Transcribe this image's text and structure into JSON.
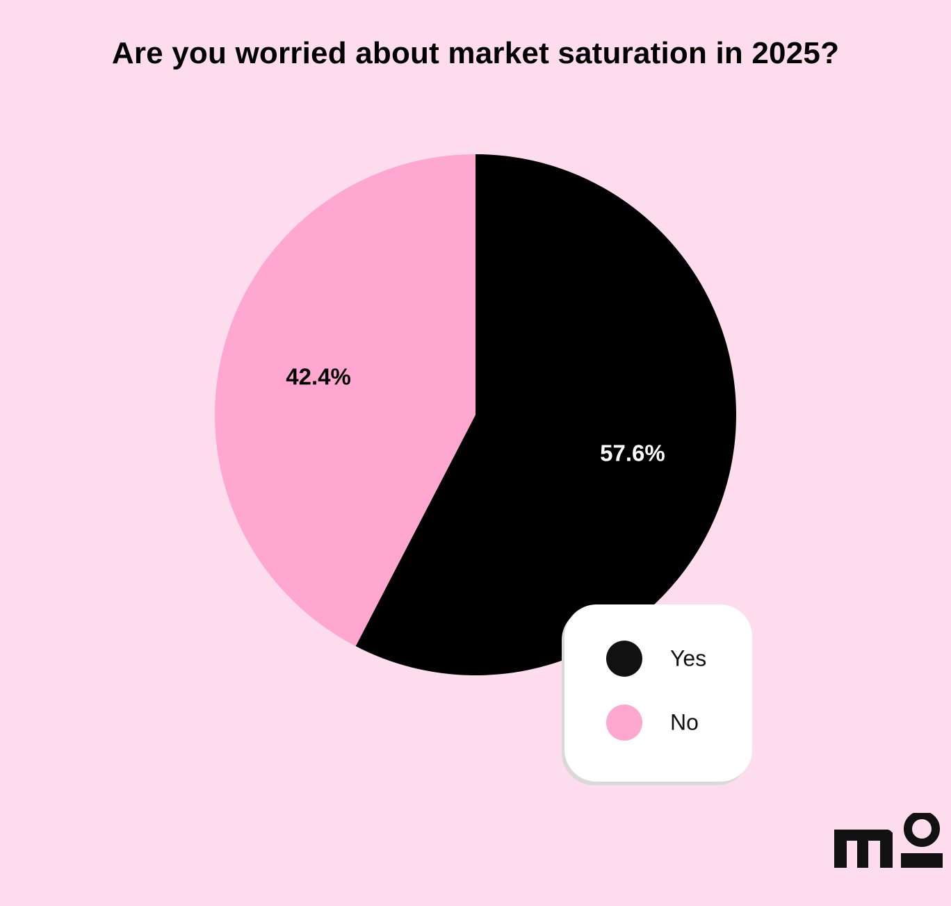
{
  "chart_data": {
    "type": "pie",
    "title": "Are you worried about market saturation in 2025?",
    "slices": [
      {
        "name": "Yes",
        "value": 57.6,
        "label": "57.6%",
        "color": "#000000",
        "label_color": "#FFFFFF"
      },
      {
        "name": "No",
        "value": 42.4,
        "label": "42.4%",
        "color": "#FFA6D1",
        "label_color": "#000000"
      }
    ],
    "legend": {
      "placement": "bottom-right",
      "items": [
        {
          "label": "Yes",
          "color": "#111111"
        },
        {
          "label": "No",
          "color": "#FFA6D1"
        }
      ]
    }
  },
  "colors": {
    "background": "#FDDDED",
    "accent": "#FFA6D1",
    "dark": "#111111"
  },
  "logo": {
    "text": "mo",
    "icon": "mo-brand-logo"
  }
}
